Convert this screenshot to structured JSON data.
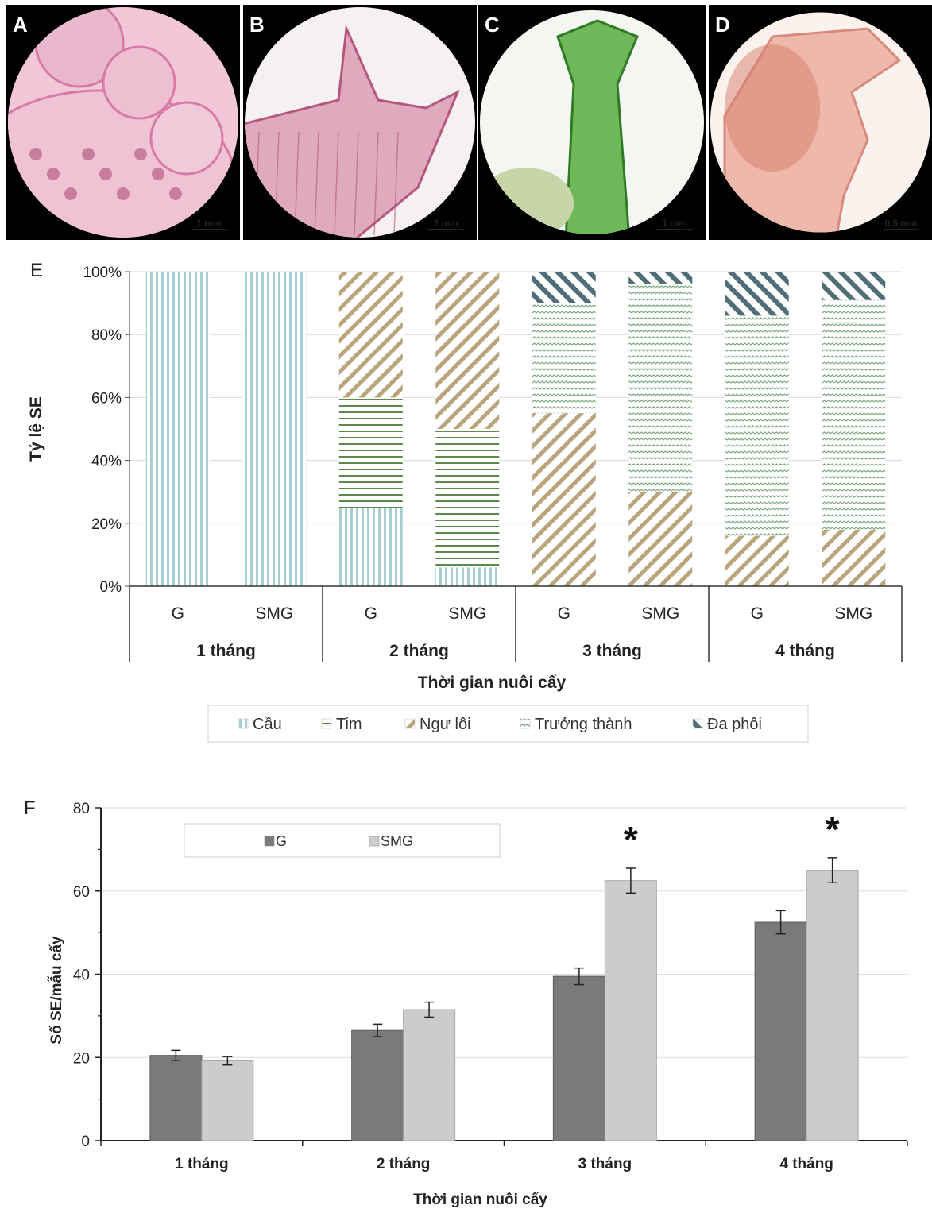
{
  "photos": {
    "panels": [
      {
        "letter": "A",
        "scale": "1 mm",
        "bg": "#f2c7d8",
        "accent": "#d77aa6"
      },
      {
        "letter": "B",
        "scale": "2 mm",
        "bg": "#f7f0f2",
        "accent": "#b4577c"
      },
      {
        "letter": "C",
        "scale": "1 mm",
        "bg": "#f4f6f2",
        "accent": "#4aa83a"
      },
      {
        "letter": "D",
        "scale": "0.5 mm",
        "bg": "#fbf2ee",
        "accent": "#d88a7e"
      }
    ]
  },
  "chart_data": [
    {
      "type": "bar",
      "panel_label": "E",
      "stacked": true,
      "ylabel": "Tỷ lệ SE",
      "xlabel": "Thời gian nuôi cấy",
      "ylim": [
        0,
        100
      ],
      "yticks": [
        "0%",
        "20%",
        "40%",
        "60%",
        "80%",
        "100%"
      ],
      "categories": [
        "G",
        "SMG",
        "G",
        "SMG",
        "G",
        "SMG",
        "G",
        "SMG"
      ],
      "groups": [
        "1 tháng",
        "2 tháng",
        "3 tháng",
        "4 tháng"
      ],
      "series": [
        {
          "name": "Cầu",
          "values": [
            100,
            100,
            25,
            6,
            0,
            0,
            0,
            0
          ],
          "color": "#a8cdd2"
        },
        {
          "name": "Tim",
          "values": [
            0,
            0,
            35,
            44,
            0,
            0,
            0,
            0
          ],
          "color": "#5f8a4e"
        },
        {
          "name": "Ngư lôi",
          "values": [
            0,
            0,
            40,
            50,
            55,
            30,
            16,
            18
          ],
          "color": "#b9a47c"
        },
        {
          "name": "Trưởng thành",
          "values": [
            0,
            0,
            0,
            0,
            35,
            66,
            70,
            73
          ],
          "color": "#7da982"
        },
        {
          "name": "Đa phôi",
          "values": [
            0,
            0,
            0,
            0,
            10,
            4,
            14,
            9
          ],
          "color": "#4f6e78"
        }
      ],
      "legend_position": "bottom",
      "grid": true
    },
    {
      "type": "bar",
      "panel_label": "F",
      "ylabel": "Số SE/mẫu cấy",
      "xlabel": "Thời gian nuôi cấy",
      "ylim": [
        0,
        80
      ],
      "yticks": [
        "0",
        "20",
        "40",
        "60",
        "80"
      ],
      "categories": [
        "1 tháng",
        "2 tháng",
        "3 tháng",
        "4 tháng"
      ],
      "series": [
        {
          "name": "G",
          "values": [
            20.5,
            26.5,
            39.5,
            52.5
          ],
          "errors": [
            1.2,
            1.5,
            2.0,
            2.8
          ],
          "color": "#7a7a7a"
        },
        {
          "name": "SMG",
          "values": [
            19.2,
            31.5,
            62.5,
            65.0
          ],
          "errors": [
            1.0,
            1.8,
            3.0,
            3.0
          ],
          "color": "#cccccc"
        }
      ],
      "significance": [
        "",
        "",
        "*",
        "*"
      ],
      "legend_position": "top-left",
      "grid": true
    }
  ]
}
